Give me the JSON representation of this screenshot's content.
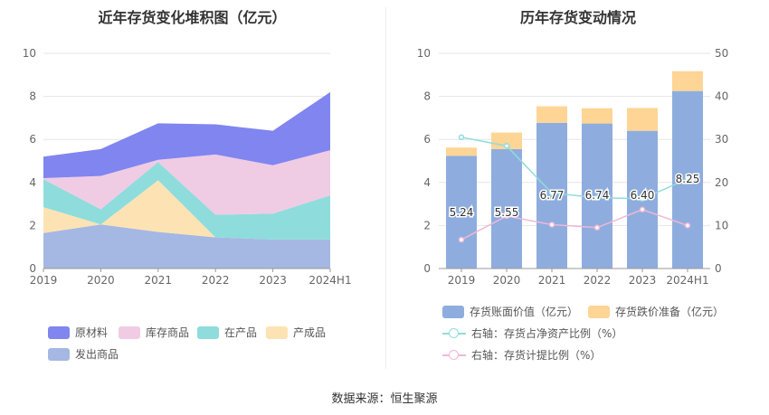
{
  "source": "数据来源：恒生聚源",
  "colors": {
    "raw": "#8085f0",
    "inventory_goods": "#f0cbe4",
    "wip": "#8fdcdc",
    "finished": "#fde3b3",
    "shipped": "#a5b8e3",
    "book_bar": "#8eadde",
    "impair_bar": "#fed595",
    "line_net": "#8fdcdc",
    "line_provision": "#f0b8d6"
  },
  "chart_data": [
    {
      "type": "area",
      "title": "近年存货变化堆积图（亿元）",
      "categories": [
        "2019",
        "2020",
        "2021",
        "2022",
        "2023",
        "2024H1"
      ],
      "ylim": [
        0,
        10
      ],
      "yticks": [
        0,
        2,
        4,
        6,
        8,
        10
      ],
      "grid": true,
      "legend_position": "bottom",
      "series": [
        {
          "name": "发出商品",
          "values": [
            1.65,
            2.05,
            1.7,
            1.45,
            1.35,
            1.35
          ]
        },
        {
          "name": "产成品",
          "values": [
            1.2,
            0.0,
            2.4,
            0.0,
            0.0,
            0.0
          ]
        },
        {
          "name": "在产品",
          "values": [
            1.3,
            0.7,
            0.85,
            1.05,
            1.2,
            2.05
          ]
        },
        {
          "name": "库存商品",
          "values": [
            0.05,
            1.55,
            0.1,
            2.8,
            2.25,
            2.1
          ]
        },
        {
          "name": "原材料",
          "values": [
            1.0,
            1.25,
            1.7,
            1.4,
            1.6,
            2.7
          ]
        }
      ],
      "legend_order": [
        "原材料",
        "库存商品",
        "在产品",
        "产成品",
        "发出商品"
      ]
    },
    {
      "type": "bar",
      "title": "历年存货变动情况",
      "categories": [
        "2019",
        "2020",
        "2021",
        "2022",
        "2023",
        "2024H1"
      ],
      "ylim": [
        0,
        10
      ],
      "yticks": [
        0,
        2,
        4,
        6,
        8,
        10
      ],
      "y2lim": [
        0,
        50
      ],
      "y2ticks": [
        0,
        10,
        20,
        30,
        40,
        50
      ],
      "grid": true,
      "legend_position": "bottom",
      "bars": [
        {
          "name": "存货账面价值（亿元）",
          "values": [
            5.24,
            5.55,
            6.77,
            6.74,
            6.4,
            8.25
          ],
          "labels": [
            "5.24",
            "5.55",
            "6.77",
            "6.74",
            "6.40",
            "8.25"
          ]
        },
        {
          "name": "存货跌价准备（亿元）",
          "values": [
            0.38,
            0.77,
            0.77,
            0.71,
            1.06,
            0.92
          ]
        }
      ],
      "lines": [
        {
          "name": "右轴：存货占净资产比例（%）",
          "values": [
            30.5,
            28.5,
            17.5,
            16.5,
            16.2,
            20.8
          ]
        },
        {
          "name": "右轴：存货计提比例（%）",
          "values": [
            6.7,
            12.2,
            10.2,
            9.5,
            13.7,
            10.0
          ]
        }
      ]
    }
  ]
}
